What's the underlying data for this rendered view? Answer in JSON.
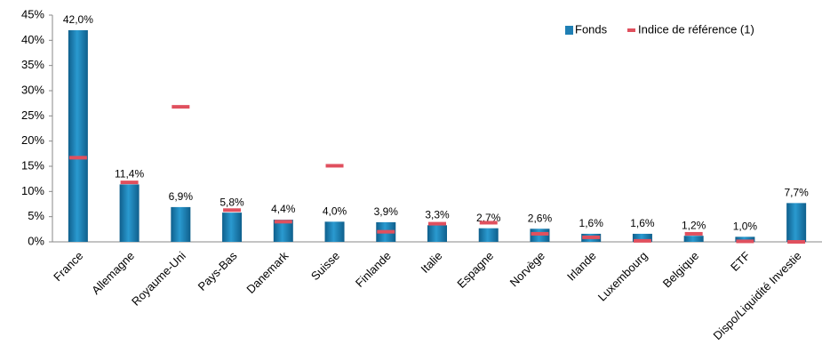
{
  "chart_data": {
    "type": "bar",
    "categories": [
      "France",
      "Allemagne",
      "Royaume-Uni",
      "Pays-Bas",
      "Danemark",
      "Suisse",
      "Finlande",
      "Italie",
      "Espagne",
      "Norvège",
      "Irlande",
      "Luxembourg",
      "Belgique",
      "ETF",
      "Dispo/Liquidité Investie"
    ],
    "series": [
      {
        "name": "Fonds",
        "color": "#1f7fb4",
        "values": [
          42.0,
          11.4,
          6.9,
          5.8,
          4.4,
          4.0,
          3.9,
          3.3,
          2.7,
          2.6,
          1.6,
          1.6,
          1.2,
          1.0,
          7.7
        ],
        "value_labels": [
          "42,0%",
          "11,4%",
          "6,9%",
          "5,8%",
          "4,4%",
          "4,0%",
          "3,9%",
          "3,3%",
          "2,7%",
          "2,6%",
          "1,6%",
          "1,6%",
          "1,2%",
          "1,0%",
          "7,7%"
        ]
      },
      {
        "name": "Indice de référence (1)",
        "color": "#e0505e",
        "values": [
          16.7,
          11.8,
          26.8,
          6.3,
          4.0,
          15.1,
          2.0,
          3.6,
          3.8,
          1.6,
          0.9,
          0.2,
          1.6,
          0.1,
          0.0
        ]
      }
    ],
    "ylim": [
      0,
      45
    ],
    "yticks": [
      {
        "value": 0,
        "label": "0%"
      },
      {
        "value": 5,
        "label": "5%"
      },
      {
        "value": 10,
        "label": "10%"
      },
      {
        "value": 15,
        "label": "15%"
      },
      {
        "value": 20,
        "label": "20%"
      },
      {
        "value": 25,
        "label": "25%"
      },
      {
        "value": 30,
        "label": "30%"
      },
      {
        "value": 35,
        "label": "35%"
      },
      {
        "value": 40,
        "label": "40%"
      },
      {
        "value": 45,
        "label": "45%"
      }
    ],
    "legend": "top-right"
  }
}
